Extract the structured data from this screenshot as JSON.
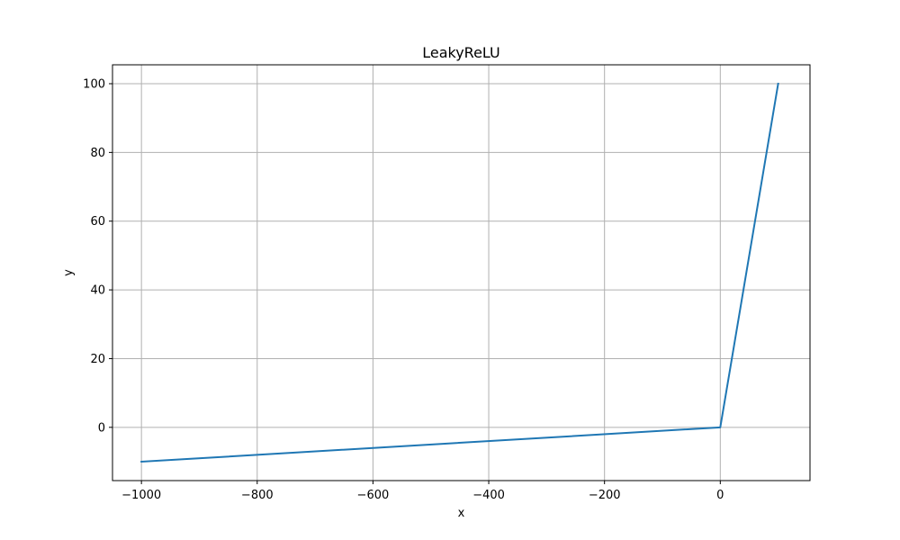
{
  "chart_data": {
    "type": "line",
    "title": "LeakyReLU",
    "xlabel": "x",
    "ylabel": "y",
    "xlim": [
      -1050,
      155
    ],
    "ylim": [
      -15.5,
      105.5
    ],
    "xticks": [
      -1000,
      -800,
      -600,
      -400,
      -200,
      0
    ],
    "yticks": [
      0,
      20,
      40,
      60,
      80,
      100
    ],
    "grid": true,
    "series": [
      {
        "color": "#1f77b4",
        "x": [
          -1000,
          0,
          100
        ],
        "y": [
          -10,
          0,
          100
        ]
      }
    ]
  }
}
